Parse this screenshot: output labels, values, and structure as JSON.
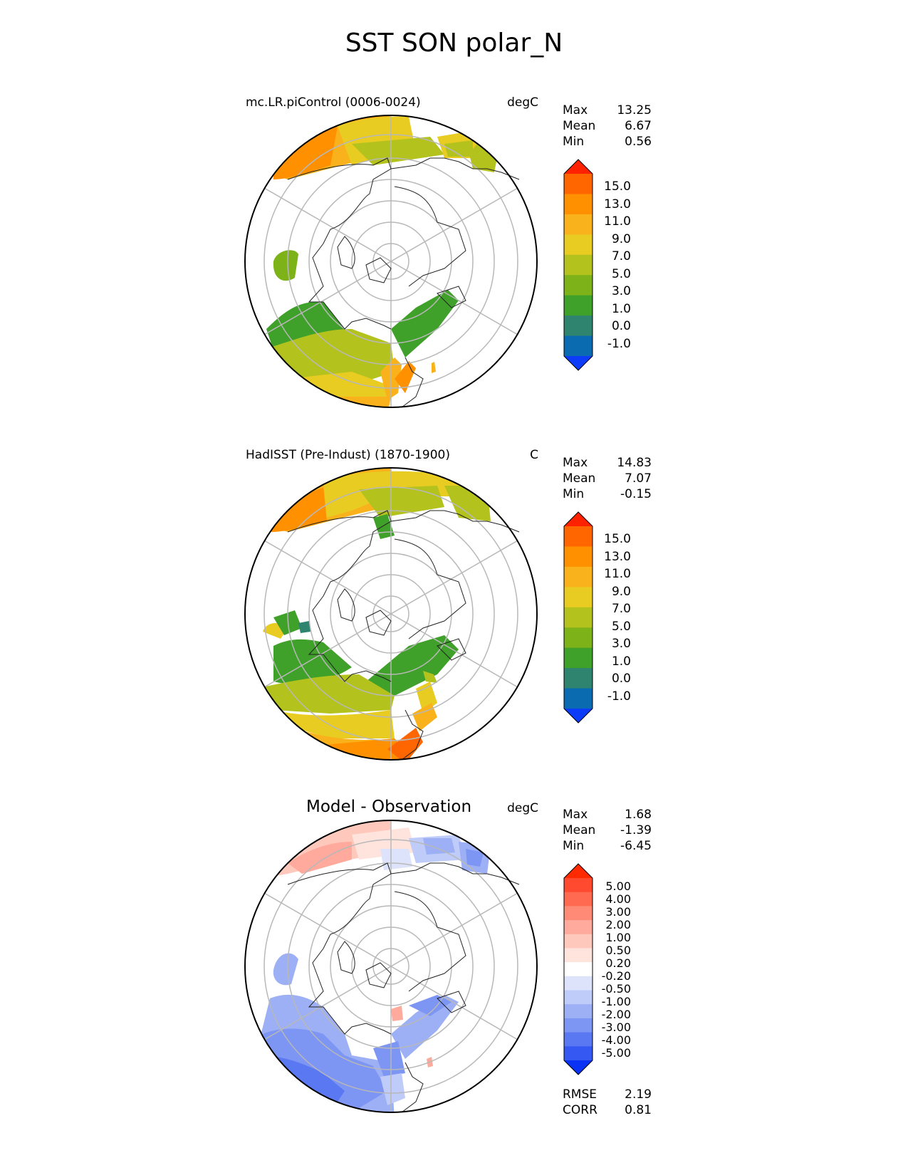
{
  "title": "SST SON polar_N",
  "panels": [
    {
      "left_title": "mc.LR.piControl (0006-0024)",
      "units": "degC",
      "stats": [
        {
          "label": "Max",
          "value": "13.25"
        },
        {
          "label": "Mean",
          "value": "6.67"
        },
        {
          "label": "Min",
          "value": "0.56"
        }
      ]
    },
    {
      "left_title": "HadISST (Pre-Indust) (1870-1900)",
      "units": "C",
      "stats": [
        {
          "label": "Max",
          "value": "14.83"
        },
        {
          "label": "Mean",
          "value": "7.07"
        },
        {
          "label": "Min",
          "value": "-0.15"
        }
      ]
    },
    {
      "center_title": "Model - Observation",
      "units": "degC",
      "stats": [
        {
          "label": "Max",
          "value": "1.68"
        },
        {
          "label": "Mean",
          "value": "-1.39"
        },
        {
          "label": "Min",
          "value": "-6.45"
        }
      ],
      "metrics": [
        {
          "label": "RMSE",
          "value": "2.19"
        },
        {
          "label": "CORR",
          "value": "0.81"
        }
      ]
    }
  ],
  "colorbars": {
    "sst": {
      "ticks": [
        "15.0",
        "13.0",
        "11.0",
        "9.0",
        "7.0",
        "5.0",
        "3.0",
        "1.0",
        "0.0",
        "-1.0"
      ],
      "colors": [
        "#ff2200",
        "#ff6600",
        "#ff9000",
        "#f9b21c",
        "#e8cc22",
        "#b4c21e",
        "#7eb219",
        "#3fa02a",
        "#2f8470",
        "#0a6bb0",
        "#0c3cf8"
      ]
    },
    "diff": {
      "ticks": [
        "5.00",
        "4.00",
        "3.00",
        "2.00",
        "1.00",
        "0.50",
        "0.20",
        "-0.20",
        "-0.50",
        "-1.00",
        "-2.00",
        "-3.00",
        "-4.00",
        "-5.00"
      ],
      "colors": [
        "#ff2a00",
        "#ff4a30",
        "#ff6a50",
        "#ff8a75",
        "#ffaa9c",
        "#ffc8bd",
        "#ffe4de",
        "#ffffff",
        "#dde3fb",
        "#bfcbf8",
        "#9db0f5",
        "#7d95f3",
        "#5a78f2",
        "#3558f3",
        "#0a32f5"
      ]
    }
  },
  "chart_data": {
    "type": "polar-stereographic map (Northern Hemisphere)",
    "variable": "SST",
    "season": "SON",
    "region": "polar_N",
    "panels": [
      {
        "name": "mc.LR.piControl (0006-0024)",
        "units": "degC",
        "max": 13.25,
        "mean": 6.67,
        "min": 0.56,
        "levels": [
          -1.0,
          0.0,
          1.0,
          3.0,
          5.0,
          7.0,
          9.0,
          11.0,
          13.0,
          15.0
        ]
      },
      {
        "name": "HadISST (Pre-Indust) (1870-1900)",
        "units": "C",
        "max": 14.83,
        "mean": 7.07,
        "min": -0.15,
        "levels": [
          -1.0,
          0.0,
          1.0,
          3.0,
          5.0,
          7.0,
          9.0,
          11.0,
          13.0,
          15.0
        ]
      },
      {
        "name": "Model - Observation",
        "units": "degC",
        "max": 1.68,
        "mean": -1.39,
        "min": -6.45,
        "rmse": 2.19,
        "corr": 0.81,
        "levels": [
          -5.0,
          -4.0,
          -3.0,
          -2.0,
          -1.0,
          -0.5,
          -0.2,
          0.2,
          0.5,
          1.0,
          2.0,
          3.0,
          4.0,
          5.0
        ]
      }
    ]
  }
}
